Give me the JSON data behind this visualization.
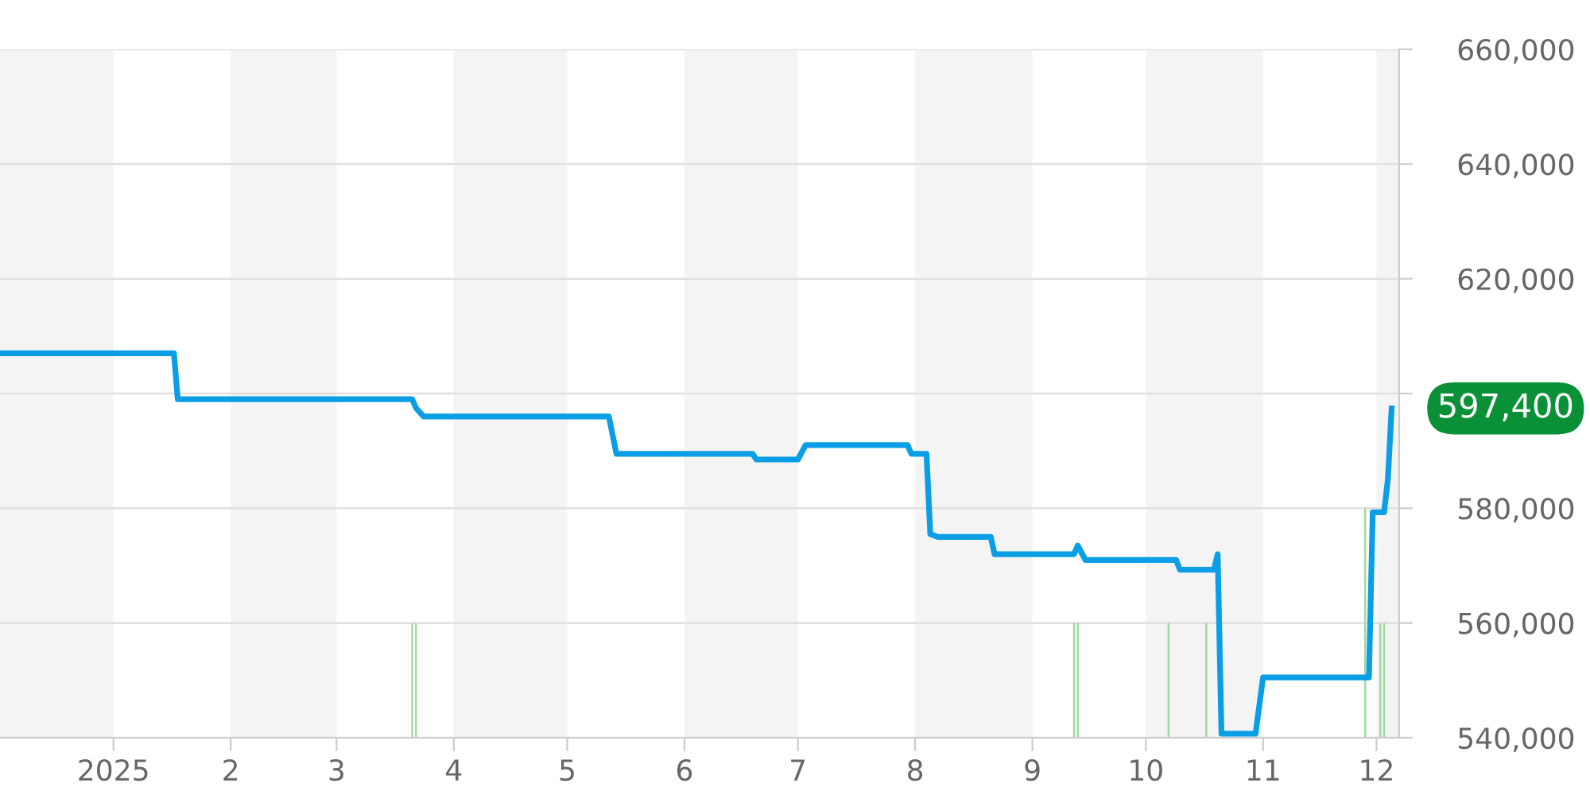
{
  "chart_data": {
    "type": "line",
    "xlim": [
      "2024-12-02",
      "2025-12-07"
    ],
    "xticks": [
      {
        "value": "2025-01-01",
        "label": "2025"
      },
      {
        "value": "2025-02-01",
        "label": "2"
      },
      {
        "value": "2025-03-01",
        "label": "3"
      },
      {
        "value": "2025-04-01",
        "label": "4"
      },
      {
        "value": "2025-05-01",
        "label": "5"
      },
      {
        "value": "2025-06-01",
        "label": "6"
      },
      {
        "value": "2025-07-01",
        "label": "7"
      },
      {
        "value": "2025-08-01",
        "label": "8"
      },
      {
        "value": "2025-09-01",
        "label": "9"
      },
      {
        "value": "2025-10-01",
        "label": "10"
      },
      {
        "value": "2025-11-01",
        "label": "11"
      },
      {
        "value": "2025-12-01",
        "label": "12"
      }
    ],
    "ylim": [
      540000,
      660000
    ],
    "yticks": [
      {
        "value": 540000,
        "label": "540,000"
      },
      {
        "value": 560000,
        "label": "560,000"
      },
      {
        "value": 580000,
        "label": "580,000"
      },
      {
        "value": 600000,
        "label": null
      },
      {
        "value": 620000,
        "label": "620,000"
      },
      {
        "value": 640000,
        "label": "640,000"
      },
      {
        "value": 660000,
        "label": "660,000"
      }
    ],
    "grid": "y",
    "legend": false,
    "marker": "none",
    "line_style": "solid",
    "bands": [
      {
        "axis": "x",
        "from": "2024-12-02",
        "to": "2025-01-01",
        "color": "#f4f4f4"
      },
      {
        "axis": "x",
        "from": "2025-02-01",
        "to": "2025-03-01",
        "color": "#f4f4f4"
      },
      {
        "axis": "x",
        "from": "2025-04-01",
        "to": "2025-05-01",
        "color": "#f4f4f4"
      },
      {
        "axis": "x",
        "from": "2025-06-01",
        "to": "2025-07-01",
        "color": "#f4f4f4"
      },
      {
        "axis": "x",
        "from": "2025-08-01",
        "to": "2025-09-01",
        "color": "#f4f4f4"
      },
      {
        "axis": "x",
        "from": "2025-10-01",
        "to": "2025-11-01",
        "color": "#f4f4f4"
      },
      {
        "axis": "x",
        "from": "2025-12-01",
        "to": "2025-12-07",
        "color": "#f4f4f4"
      }
    ],
    "series": [
      {
        "type": "bar",
        "color": "#9ed89e",
        "x": [
          "2025-03-21",
          "2025-03-22",
          "2025-09-12",
          "2025-09-13",
          "2025-10-07",
          "2025-10-17",
          "2025-11-28",
          "2025-12-02",
          "2025-12-03"
        ],
        "base": [
          540000,
          540000,
          540000,
          540000,
          540000,
          540000,
          540000,
          540000,
          540000
        ],
        "values": [
          20000,
          20000,
          20000,
          20000,
          20000,
          20000,
          40000,
          20000,
          20000
        ]
      },
      {
        "color": "#0a9ee6",
        "x": [
          "2024-12-02",
          "2025-01-17",
          "2025-01-18",
          "2025-03-21",
          "2025-03-22",
          "2025-03-24",
          "2025-05-12",
          "2025-05-14",
          "2025-06-19",
          "2025-06-20",
          "2025-07-01",
          "2025-07-03",
          "2025-07-30",
          "2025-07-31",
          "2025-08-04",
          "2025-08-05",
          "2025-08-07",
          "2025-08-21",
          "2025-08-22",
          "2025-09-12",
          "2025-09-13",
          "2025-09-15",
          "2025-10-09",
          "2025-10-10",
          "2025-10-19",
          "2025-10-20",
          "2025-10-21",
          "2025-10-30",
          "2025-11-01",
          "2025-11-29",
          "2025-11-30",
          "2025-12-03",
          "2025-12-04",
          "2025-12-05"
        ],
        "values": [
          607000,
          607000,
          599000,
          599000,
          597500,
          596000,
          596000,
          589500,
          589500,
          588500,
          588500,
          591000,
          591000,
          589500,
          589500,
          575500,
          575000,
          575000,
          572000,
          572000,
          573500,
          571000,
          571000,
          569300,
          569300,
          572000,
          540700,
          540700,
          550500,
          550500,
          579300,
          579300,
          585000,
          597400
        ]
      }
    ],
    "annotations": [
      {
        "text": "597,400",
        "x": "2025-12-05",
        "y": 597400
      }
    ]
  }
}
